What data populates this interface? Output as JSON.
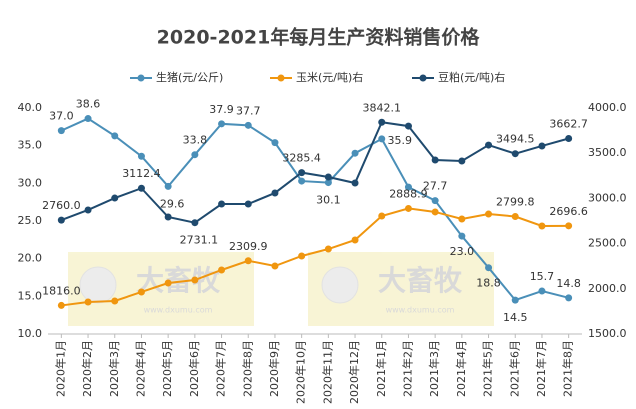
{
  "chart_data": {
    "type": "line",
    "title": "2020-2021年每月生产资料销售价格",
    "categories": [
      "2020年1月",
      "2020年2月",
      "2020年3月",
      "2020年4月",
      "2020年5月",
      "2020年6月",
      "2020年7月",
      "2020年8月",
      "2020年9月",
      "2020年10月",
      "2020年11月",
      "2020年12月",
      "2021年1月",
      "2021年2月",
      "2021年3月",
      "2021年4月",
      "2021年5月",
      "2021年6月",
      "2021年7月",
      "2021年8月"
    ],
    "series": [
      {
        "name": "生猪(元/公斤)",
        "color": "#4a8fb8",
        "values": [
          37.0,
          38.6,
          36.3,
          33.6,
          29.6,
          33.8,
          37.9,
          37.7,
          35.4,
          30.3,
          30.1,
          34.0,
          35.9,
          29.5,
          27.7,
          23.0,
          18.8,
          14.5,
          15.7,
          14.8
        ],
        "value_labels": [
          "37.0",
          "38.6",
          null,
          null,
          "29.6",
          "33.8",
          "37.9",
          "37.7",
          null,
          null,
          "30.1",
          null,
          "35.9",
          null,
          "27.7",
          "23.0",
          "18.8",
          "14.5",
          "15.7",
          "14.8"
        ]
      },
      {
        "name": "玉米(元/吨)右",
        "color": "#f0960f",
        "axis": "y2",
        "values": [
          1816.0,
          1854,
          1865,
          1965,
          2064,
          2097,
          2208,
          2309.9,
          2252,
          2363,
          2440,
          2540,
          2805,
          2888.9,
          2850,
          2772,
          2827,
          2799.8,
          2695,
          2696.6
        ],
        "value_labels": [
          "1816.0",
          null,
          null,
          null,
          null,
          null,
          null,
          "2309.9",
          null,
          null,
          null,
          null,
          null,
          "2888.9",
          null,
          null,
          null,
          "2799.8",
          null,
          "2696.6"
        ]
      },
      {
        "name": "豆粕(元/吨)右",
        "color": "#1f4a6e",
        "axis": "y2",
        "values": [
          2760.0,
          2872,
          3004,
          3112.4,
          2794,
          2731.1,
          2938,
          2938,
          3060,
          3285.4,
          3237,
          3170,
          3842.1,
          3800,
          3425,
          3414,
          3590,
          3494.5,
          3580,
          3662.7
        ],
        "value_labels": [
          "2760.0",
          null,
          null,
          "3112.4",
          null,
          "2731.1",
          null,
          null,
          null,
          "3285.4",
          null,
          null,
          "3842.1",
          null,
          null,
          null,
          null,
          "3494.5",
          null,
          "3662.7"
        ]
      }
    ],
    "ylim": [
      10,
      40
    ],
    "yticks": [
      {
        "value": 10,
        "label": "10.0"
      },
      {
        "value": 15,
        "label": "15.0"
      },
      {
        "value": 20,
        "label": "20.0"
      },
      {
        "value": 25,
        "label": "25.0"
      },
      {
        "value": 30,
        "label": "30.0"
      },
      {
        "value": 35,
        "label": "35.0"
      },
      {
        "value": 40,
        "label": "40.0"
      }
    ],
    "y2lim": [
      1500,
      4000
    ],
    "y2ticks": [
      {
        "value": 1500,
        "label": "1500.0"
      },
      {
        "value": 2000,
        "label": "2000.0"
      },
      {
        "value": 2500,
        "label": "2500.0"
      },
      {
        "value": 3000,
        "label": "3000.0"
      },
      {
        "value": 3500,
        "label": "3500.0"
      },
      {
        "value": 4000,
        "label": "4000.0"
      }
    ],
    "grid": false,
    "watermark": {
      "text": "大畜牧",
      "url": "www.dxumu.com"
    }
  }
}
